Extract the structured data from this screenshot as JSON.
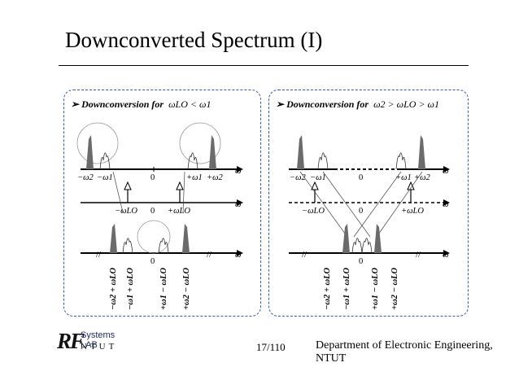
{
  "title": "Downconverted Spectrum (I)",
  "left_panel": {
    "heading": "Downconversion for",
    "condition": "ωLO < ω1",
    "row1_labels": [
      "−ω2",
      "−ω1",
      "0",
      "+ω1",
      "+ω2"
    ],
    "row2_labels": [
      "−ωLO",
      "0",
      "+ωLO"
    ],
    "row3_labels": [
      "−ω2 + ωLO",
      "−ω1 + ωLO",
      "+ω1 − ωLO",
      "+ω2 − ωLO"
    ],
    "row3_zero": "0",
    "axis_symbol": "ω"
  },
  "right_panel": {
    "heading": "Downconversion for",
    "condition": "ω2 > ωLO > ω1",
    "row1_labels": [
      "−ω2",
      "−ω1",
      "0",
      "+ω1",
      "+ω2"
    ],
    "row2_labels": [
      "−ωLO",
      "0",
      "+ωLO"
    ],
    "row3_labels": [
      "−ω2 + ωLO",
      "−ω1 + ωLO",
      "+ω1 − ωLO",
      "+ω2 − ωLO"
    ],
    "row3_zero": "0",
    "axis_symbol": "ω"
  },
  "footer": {
    "page": "17/110",
    "department": "Department of Electronic Engineering, NTUT",
    "logo_mark": "RF",
    "logo_lab": "Systems LAB",
    "logo_school": "NTUT"
  },
  "colors": {
    "panel_border": "#3b5aa8",
    "fill_gray": "#6b6b6b"
  }
}
